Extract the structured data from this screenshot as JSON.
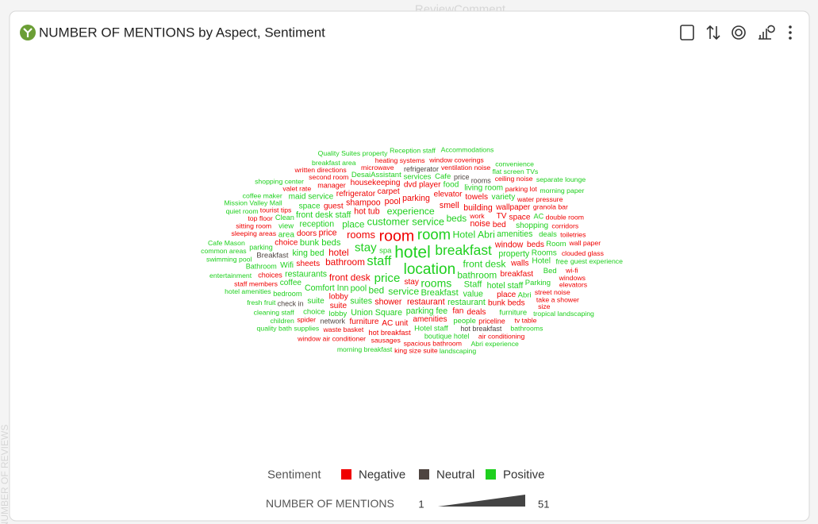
{
  "background": {
    "top": "ReviewComment",
    "left": "NUMBER OF REVIEWS"
  },
  "chart_data": {
    "type": "wordcloud",
    "title": "NUMBER OF MENTIONS by Aspect, Sentiment",
    "legend_title": "Sentiment",
    "size_title": "NUMBER OF MENTIONS",
    "size_range": [
      1,
      51
    ],
    "series": [
      {
        "name": "Negative",
        "color": "#f00000",
        "words": [
          "room",
          "rooms",
          "bathroom",
          "front desk",
          "hotel",
          "restaurant",
          "price",
          "hot tub",
          "noise",
          "smell",
          "shower",
          "pool",
          "shampoo",
          "parking",
          "window",
          "building",
          "bed",
          "breakfast",
          "lobby",
          "sheets",
          "walls",
          "doors",
          "refrigerator",
          "guest",
          "elevator",
          "stay",
          "carpet",
          "dvd player",
          "towels",
          "wallpaper",
          "space",
          "place",
          "fan",
          "beds",
          "suite",
          "TV",
          "amenities",
          "bunk beds",
          "deals",
          "choice",
          "AC unit",
          "housekeeping",
          "furniture",
          "hot breakfast",
          "manager",
          "priceline",
          "choices",
          "waste basket",
          "water pressure",
          "street noise",
          "spacious bathroom",
          "staff members",
          "sleeping areas",
          "tourist tips",
          "sitting room",
          "second room",
          "parking lot",
          "valet rate",
          "microwave",
          "heating systems",
          "ventilation noise",
          "granola bar",
          "ceiling noise",
          "double room",
          "corridors",
          "clouded glass",
          "toiletries",
          "wall paper",
          "take a shower",
          "wi-fi",
          "top floor",
          "windows",
          "sausages",
          "work",
          "size",
          "spider",
          "tv table",
          "air conditioning",
          "elevators",
          "window coverings",
          "window air conditioner",
          "written directions",
          "king size suite"
        ],
        "values": [
          46,
          22,
          18,
          18,
          18,
          14,
          14,
          14,
          14,
          14,
          14,
          14,
          14,
          14,
          14,
          14,
          12,
          12,
          12,
          12,
          12,
          12,
          12,
          12,
          12,
          12,
          12,
          12,
          12,
          12,
          12,
          12,
          12,
          12,
          12,
          12,
          12,
          12,
          12,
          12,
          12,
          12,
          12,
          9,
          8,
          8,
          8,
          7,
          7,
          7,
          7,
          7,
          7,
          7,
          7,
          7,
          7,
          7,
          7,
          7,
          7,
          7,
          7,
          7,
          7,
          7,
          7,
          7,
          7,
          7,
          7,
          7,
          7,
          7,
          7,
          7,
          7,
          7,
          7,
          7,
          7,
          7,
          7
        ]
      },
      {
        "name": "Neutral",
        "color": "#4e4440",
        "words": [
          "Breakfast",
          "price",
          "network",
          "hot breakfast",
          "check in",
          "refrigerator",
          "rooms"
        ],
        "values": [
          10,
          8,
          8,
          8,
          8,
          8,
          8
        ]
      },
      {
        "name": "Positive",
        "color": "#1ed01e",
        "words": [
          "hotel",
          "location",
          "room",
          "breakfast",
          "staff",
          "stay",
          "price",
          "rooms",
          "customer service",
          "Hotel Abri",
          "experience",
          "front desk",
          "service",
          "bathroom",
          "place",
          "beds",
          "bed",
          "Staff",
          "Breakfast",
          "bunk beds",
          "pool",
          "property",
          "value",
          "restaurant",
          "suites",
          "amenities",
          "Comfort Inn",
          "king bed",
          "parking fee",
          "reception",
          "hotel staff",
          "front desk staff",
          "Union Square",
          "restaurants",
          "suite",
          "Wifi",
          "shopping",
          "space",
          "food",
          "coffee",
          "area",
          "Rooms",
          "living room",
          "maid service",
          "Hotel",
          "variety",
          "view",
          "Parking",
          "lobby",
          "deals",
          "people",
          "services",
          "spa",
          "Cafe",
          "Bed",
          "Abri",
          "Room",
          "Hotel staff",
          "furniture",
          "choice",
          "DesaiAssistant",
          "bedroom",
          "Clean",
          "AC",
          "Bathroom",
          "boutique hotel",
          "free",
          "parking",
          "cleaning staff",
          "morning breakfast",
          "Mission Valley Mall",
          "guest experience",
          "bathrooms",
          "hotel amenities",
          "quality bath supplies",
          "swimming pool",
          "fresh fruit",
          "entertainment",
          "coffee maker",
          "flat screen TVs",
          "shopping center",
          "tropical landscaping",
          "common areas",
          "children",
          "Abri experience",
          "Cafe Mason",
          "breakfast area",
          "Quality Suites property",
          "Reception staff",
          "Accommodations",
          "convenience",
          "morning paper",
          "landscaping",
          "quiet room",
          "separate lounge"
        ],
        "values": [
          51,
          44,
          42,
          38,
          35,
          30,
          30,
          26,
          22,
          20,
          20,
          20,
          20,
          18,
          18,
          18,
          18,
          16,
          16,
          16,
          15,
          14,
          14,
          14,
          14,
          14,
          14,
          14,
          14,
          14,
          14,
          14,
          14,
          14,
          12,
          12,
          12,
          12,
          12,
          12,
          12,
          12,
          12,
          12,
          12,
          12,
          10,
          10,
          10,
          10,
          10,
          10,
          10,
          10,
          10,
          10,
          10,
          10,
          10,
          10,
          10,
          9,
          9,
          9,
          8,
          8,
          8,
          8,
          7,
          7,
          7,
          7,
          7,
          7,
          7,
          7,
          7,
          7,
          7,
          7,
          7,
          7,
          7,
          7,
          7,
          7,
          7,
          7,
          7,
          7,
          7,
          7,
          7,
          7,
          7
        ]
      }
    ]
  }
}
